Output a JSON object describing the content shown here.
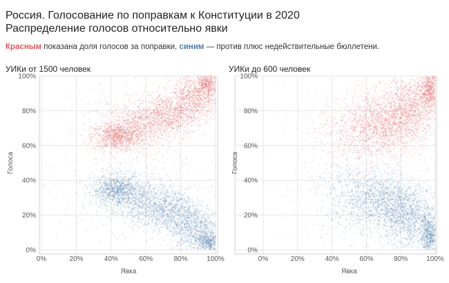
{
  "title_line1": "Россия. Голосование по поправкам к Конституции в 2020",
  "title_line2": "Распределение голосов относительно явки",
  "subtitle": {
    "red_word": "Красным",
    "middle": " показана доля голосов за поправки, ",
    "blue_word": "синим",
    "end": " — против плюс недействительные бюллетени."
  },
  "colors": {
    "for": "#e15759",
    "against": "#4e79a7",
    "grid": "#e6e6e6"
  },
  "chart_data": [
    {
      "type": "scatter",
      "title": "УИКи от 1500 человек",
      "xlabel": "Явка",
      "ylabel": "Голоса",
      "xlim": [
        0,
        100
      ],
      "ylim": [
        0,
        100
      ],
      "x_ticks": [
        "0%",
        "20%",
        "40%",
        "60%",
        "80%",
        "100%"
      ],
      "y_ticks": [
        "0%",
        "20%",
        "40%",
        "60%",
        "80%",
        "100%"
      ],
      "grid": true,
      "series": [
        {
          "name": "Красным",
          "color": "#e15759",
          "clusters": [
            {
              "x": 43,
              "y": 65,
              "sx": 7,
              "sy": 4,
              "n": 900
            },
            {
              "x": 55,
              "y": 70,
              "sx": 10,
              "sy": 6,
              "n": 700
            },
            {
              "x": 72,
              "y": 78,
              "sx": 9,
              "sy": 6,
              "n": 900
            },
            {
              "x": 88,
              "y": 88,
              "sx": 7,
              "sy": 7,
              "n": 1000
            },
            {
              "x": 96,
              "y": 96,
              "sx": 3,
              "sy": 3,
              "n": 400
            },
            {
              "x": 55,
              "y": 72,
              "sx": 22,
              "sy": 12,
              "n": 450
            }
          ]
        },
        {
          "name": "синим",
          "color": "#4e79a7",
          "clusters": [
            {
              "x": 43,
              "y": 35,
              "sx": 7,
              "sy": 4,
              "n": 900
            },
            {
              "x": 55,
              "y": 30,
              "sx": 10,
              "sy": 6,
              "n": 700
            },
            {
              "x": 72,
              "y": 22,
              "sx": 9,
              "sy": 6,
              "n": 900
            },
            {
              "x": 88,
              "y": 12,
              "sx": 7,
              "sy": 7,
              "n": 1000
            },
            {
              "x": 96,
              "y": 4,
              "sx": 3,
              "sy": 3,
              "n": 400
            },
            {
              "x": 55,
              "y": 28,
              "sx": 22,
              "sy": 12,
              "n": 450
            }
          ]
        }
      ]
    },
    {
      "type": "scatter",
      "title": "УИКи до 600 человек",
      "xlabel": "Явка",
      "ylabel": "Голоса",
      "xlim": [
        0,
        100
      ],
      "ylim": [
        0,
        100
      ],
      "x_ticks": [
        "0%",
        "20%",
        "40%",
        "60%",
        "80%",
        "100%"
      ],
      "y_ticks": [
        "0%",
        "20%",
        "40%",
        "60%",
        "80%",
        "100%"
      ],
      "grid": true,
      "series": [
        {
          "name": "Красным",
          "color": "#e15759",
          "clusters": [
            {
              "x": 70,
              "y": 72,
              "sx": 10,
              "sy": 8,
              "n": 1000
            },
            {
              "x": 85,
              "y": 82,
              "sx": 8,
              "sy": 9,
              "n": 1100
            },
            {
              "x": 97,
              "y": 92,
              "sx": 3,
              "sy": 6,
              "n": 700
            },
            {
              "x": 55,
              "y": 68,
              "sx": 12,
              "sy": 10,
              "n": 500
            },
            {
              "x": 65,
              "y": 72,
              "sx": 22,
              "sy": 14,
              "n": 500
            }
          ]
        },
        {
          "name": "синим",
          "color": "#4e79a7",
          "clusters": [
            {
              "x": 70,
              "y": 28,
              "sx": 10,
              "sy": 8,
              "n": 1000
            },
            {
              "x": 85,
              "y": 18,
              "sx": 8,
              "sy": 9,
              "n": 1100
            },
            {
              "x": 97,
              "y": 8,
              "sx": 3,
              "sy": 6,
              "n": 700
            },
            {
              "x": 55,
              "y": 32,
              "sx": 12,
              "sy": 10,
              "n": 500
            },
            {
              "x": 65,
              "y": 28,
              "sx": 22,
              "sy": 14,
              "n": 500
            }
          ]
        }
      ]
    }
  ]
}
